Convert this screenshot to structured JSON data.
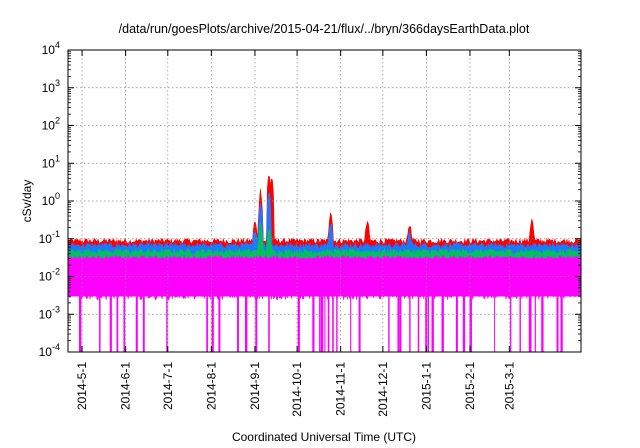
{
  "chart_data": {
    "type": "area",
    "title": "/data/run/goesPlots/archive/2015-04-21/flux/../bryn/366daysEarthData.plot",
    "xlabel": "Coordinated Universal Time (UTC)",
    "ylabel": "cSv/day",
    "yscale": "log",
    "ylim_exponents": [
      -4,
      4
    ],
    "xlim": [
      "2014-04-21",
      "2015-04-21"
    ],
    "y_tick_labels": [
      {
        "base": "10",
        "exp": "-4"
      },
      {
        "base": "10",
        "exp": "-3"
      },
      {
        "base": "10",
        "exp": "-2"
      },
      {
        "base": "10",
        "exp": "-1"
      },
      {
        "base": "10",
        "exp": "0"
      },
      {
        "base": "10",
        "exp": "1"
      },
      {
        "base": "10",
        "exp": "2"
      },
      {
        "base": "10",
        "exp": "3"
      },
      {
        "base": "10",
        "exp": "4"
      }
    ],
    "x_tick_labels": [
      "2014-5-1",
      "2014-6-1",
      "2014-7-1",
      "2014-8-1",
      "2014-9-1",
      "2014-10-1",
      "2014-11-1",
      "2014-12-1",
      "2015-1-1",
      "2015-2-1",
      "2015-3-1"
    ],
    "grid": true,
    "series": [
      {
        "color": "#ff0000",
        "typical": 0.085,
        "points": [
          [
            "2014-09-01",
            0.3
          ],
          [
            "2014-09-05",
            2.0
          ],
          [
            "2014-09-11",
            5.5
          ],
          [
            "2014-09-13",
            4.5
          ],
          [
            "2014-10-25",
            0.6
          ],
          [
            "2014-11-20",
            0.3
          ],
          [
            "2014-12-20",
            0.25
          ],
          [
            "2015-03-17",
            0.35
          ]
        ]
      },
      {
        "color": "#1e78ff",
        "typical": 0.065,
        "points": [
          [
            "2014-09-01",
            0.2
          ],
          [
            "2014-09-05",
            1.0
          ],
          [
            "2014-09-11",
            2.0
          ],
          [
            "2014-10-25",
            0.3
          ],
          [
            "2014-12-20",
            0.15
          ]
        ]
      },
      {
        "color": "#00c060",
        "typical": 0.045,
        "points": [
          [
            "2014-09-05",
            0.3
          ],
          [
            "2014-09-11",
            0.2
          ]
        ]
      },
      {
        "color": "#ff00ff",
        "typical": 0.03,
        "lower": 0.003,
        "drop_to": 0.0001
      }
    ]
  }
}
